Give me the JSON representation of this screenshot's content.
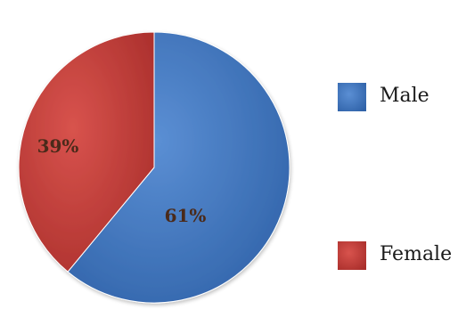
{
  "chart_data": {
    "type": "pie",
    "title": "",
    "series": [
      {
        "name": "Male",
        "value": 61,
        "label": "61%",
        "color": "#3e75bd"
      },
      {
        "name": "Female",
        "value": 39,
        "label": "39%",
        "color": "#c43a36"
      }
    ],
    "legend": {
      "placement": "right",
      "items": [
        "Male",
        "Female"
      ]
    }
  }
}
